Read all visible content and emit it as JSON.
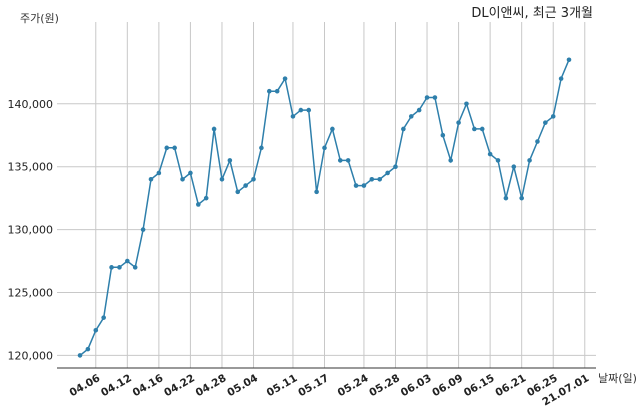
{
  "chart_data": {
    "type": "line",
    "title": "DL이앤씨, 최근 3개월",
    "ylabel": "주가(원)",
    "xlabel": "날짜(일)",
    "ylim": [
      119000,
      146500
    ],
    "yticks": [
      120000,
      125000,
      130000,
      135000,
      140000
    ],
    "ytick_labels": [
      "120,000",
      "125,000",
      "130,000",
      "135,000",
      "140,000"
    ],
    "xtick_labels": [
      "04.06",
      "04.12",
      "04.16",
      "04.22",
      "04.28",
      "05.04",
      "05.11",
      "05.17",
      "05.24",
      "05.28",
      "06.03",
      "06.09",
      "06.15",
      "06.21",
      "06.25",
      "21.07.01"
    ],
    "xtick_index": [
      2,
      6,
      10,
      14,
      18,
      22,
      27,
      31,
      36,
      40,
      44,
      48,
      52,
      56,
      60,
      64
    ],
    "grid": true,
    "line_color": "#2e7fab",
    "series": [
      {
        "values": [
          120000,
          120500,
          122000,
          123000,
          127000,
          127000,
          127500,
          127000,
          130000,
          134000,
          134500,
          136500,
          136500,
          134000,
          134500,
          132000,
          132500,
          138000,
          134000,
          135500,
          133000,
          133500,
          134000,
          136500,
          141000,
          141000,
          142000,
          139000,
          139500,
          139500,
          133000,
          136500,
          138000,
          135500,
          135500,
          133500,
          133500,
          134000,
          134000,
          134500,
          135000,
          138000,
          139000,
          139500,
          140500,
          140500,
          137500,
          135500,
          138500,
          140000,
          138000,
          138000,
          136000,
          135500,
          132500,
          135000,
          132500,
          135500,
          137000,
          138500,
          139000,
          142000,
          143500
        ]
      }
    ]
  }
}
